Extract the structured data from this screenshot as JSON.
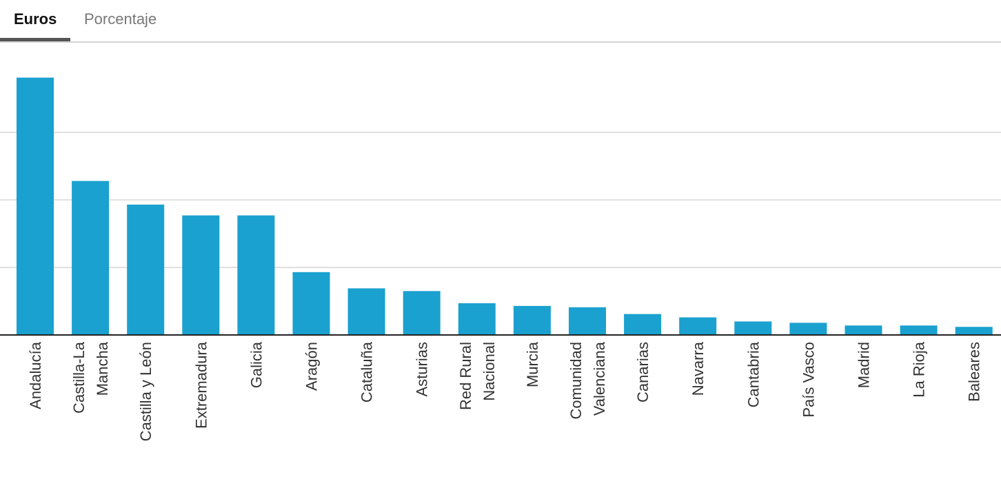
{
  "tabs": [
    {
      "label": "Euros",
      "active": true
    },
    {
      "label": "Porcentaje",
      "active": false
    }
  ],
  "colors": {
    "bar": "#1aa1cf",
    "grid": "#d6d6d6",
    "axis": "#222222",
    "label": "#333333"
  },
  "chart_data": {
    "type": "bar",
    "categories": [
      [
        "Andalucía"
      ],
      [
        "Castilla-La",
        "Mancha"
      ],
      [
        "Castilla y León"
      ],
      [
        "Extremadura"
      ],
      [
        "Galicia"
      ],
      [
        "Aragón"
      ],
      [
        "Cataluña"
      ],
      [
        "Asturias"
      ],
      [
        "Red Rural",
        "Nacional"
      ],
      [
        "Murcia"
      ],
      [
        "Comunidad",
        "Valenciana"
      ],
      [
        "Canarias"
      ],
      [
        "Navarra"
      ],
      [
        "Cantabria"
      ],
      [
        "País Vasco"
      ],
      [
        "Madrid"
      ],
      [
        "La Rioja"
      ],
      [
        "Baleares"
      ]
    ],
    "values": [
      3.81,
      2.28,
      1.93,
      1.77,
      1.77,
      0.93,
      0.69,
      0.65,
      0.47,
      0.43,
      0.41,
      0.31,
      0.26,
      0.2,
      0.18,
      0.14,
      0.14,
      0.12
    ],
    "ylim": [
      0,
      4
    ],
    "gridlines": [
      1,
      2,
      3
    ],
    "grid": true,
    "legend": "none",
    "value_axis_labels": "hidden"
  }
}
